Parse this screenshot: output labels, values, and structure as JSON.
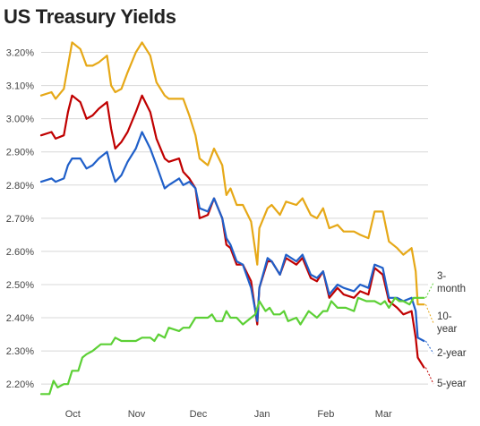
{
  "chart_data": {
    "type": "line",
    "title": "US Treasury Yields",
    "xlabel": "",
    "ylabel": "",
    "ylim": [
      2.16,
      3.25
    ],
    "y_ticks": [
      "3.20%",
      "3.10%",
      "3.00%",
      "2.90%",
      "2.80%",
      "2.70%",
      "2.60%",
      "2.50%",
      "2.40%",
      "2.30%",
      "2.20%"
    ],
    "y_tick_values": [
      3.2,
      3.1,
      3.0,
      2.9,
      2.8,
      2.7,
      2.6,
      2.5,
      2.4,
      2.3,
      2.2
    ],
    "x_ticks": [
      "Oct",
      "Nov",
      "Dec",
      "Jan",
      "Feb",
      "Mar"
    ],
    "x_tick_dates": [
      "2018-10-01",
      "2018-11-01",
      "2018-12-01",
      "2019-01-01",
      "2019-02-01",
      "2019-03-01"
    ],
    "x_range": [
      "2018-09-20",
      "2019-03-27"
    ],
    "grid": "horizontal",
    "series": [
      {
        "name": "10-year",
        "color": "#e6a817",
        "label_offset": 0,
        "points": [
          [
            "2018-09-20",
            3.07
          ],
          [
            "2018-09-25",
            3.08
          ],
          [
            "2018-09-27",
            3.06
          ],
          [
            "2018-10-01",
            3.09
          ],
          [
            "2018-10-03",
            3.16
          ],
          [
            "2018-10-05",
            3.23
          ],
          [
            "2018-10-09",
            3.21
          ],
          [
            "2018-10-12",
            3.16
          ],
          [
            "2018-10-15",
            3.16
          ],
          [
            "2018-10-18",
            3.17
          ],
          [
            "2018-10-22",
            3.19
          ],
          [
            "2018-10-24",
            3.1
          ],
          [
            "2018-10-26",
            3.08
          ],
          [
            "2018-10-29",
            3.09
          ],
          [
            "2018-11-01",
            3.14
          ],
          [
            "2018-11-05",
            3.2
          ],
          [
            "2018-11-08",
            3.23
          ],
          [
            "2018-11-12",
            3.19
          ],
          [
            "2018-11-15",
            3.11
          ],
          [
            "2018-11-19",
            3.07
          ],
          [
            "2018-11-21",
            3.06
          ],
          [
            "2018-11-26",
            3.06
          ],
          [
            "2018-11-28",
            3.06
          ],
          [
            "2018-12-01",
            3.01
          ],
          [
            "2018-12-04",
            2.95
          ],
          [
            "2018-12-06",
            2.88
          ],
          [
            "2018-12-10",
            2.86
          ],
          [
            "2018-12-13",
            2.91
          ],
          [
            "2018-12-17",
            2.86
          ],
          [
            "2018-12-19",
            2.77
          ],
          [
            "2018-12-21",
            2.79
          ],
          [
            "2018-12-24",
            2.74
          ],
          [
            "2018-12-27",
            2.74
          ],
          [
            "2018-12-31",
            2.69
          ],
          [
            "2019-01-03",
            2.56
          ],
          [
            "2019-01-04",
            2.67
          ],
          [
            "2019-01-08",
            2.73
          ],
          [
            "2019-01-10",
            2.74
          ],
          [
            "2019-01-14",
            2.71
          ],
          [
            "2019-01-17",
            2.75
          ],
          [
            "2019-01-22",
            2.74
          ],
          [
            "2019-01-25",
            2.76
          ],
          [
            "2019-01-29",
            2.71
          ],
          [
            "2019-02-01",
            2.7
          ],
          [
            "2019-02-04",
            2.73
          ],
          [
            "2019-02-07",
            2.67
          ],
          [
            "2019-02-11",
            2.68
          ],
          [
            "2019-02-14",
            2.66
          ],
          [
            "2019-02-19",
            2.66
          ],
          [
            "2019-02-22",
            2.65
          ],
          [
            "2019-02-26",
            2.64
          ],
          [
            "2019-03-01",
            2.72
          ],
          [
            "2019-03-05",
            2.72
          ],
          [
            "2019-03-08",
            2.63
          ],
          [
            "2019-03-12",
            2.61
          ],
          [
            "2019-03-15",
            2.59
          ],
          [
            "2019-03-19",
            2.61
          ],
          [
            "2019-03-21",
            2.54
          ],
          [
            "2019-03-22",
            2.44
          ],
          [
            "2019-03-25",
            2.44
          ]
        ]
      },
      {
        "name": "5-year",
        "color": "#c00000",
        "label_offset": 0,
        "points": [
          [
            "2018-09-20",
            2.95
          ],
          [
            "2018-09-25",
            2.96
          ],
          [
            "2018-09-27",
            2.94
          ],
          [
            "2018-10-01",
            2.95
          ],
          [
            "2018-10-03",
            3.02
          ],
          [
            "2018-10-05",
            3.07
          ],
          [
            "2018-10-09",
            3.05
          ],
          [
            "2018-10-12",
            3.0
          ],
          [
            "2018-10-15",
            3.01
          ],
          [
            "2018-10-18",
            3.03
          ],
          [
            "2018-10-22",
            3.05
          ],
          [
            "2018-10-24",
            2.97
          ],
          [
            "2018-10-26",
            2.91
          ],
          [
            "2018-10-29",
            2.93
          ],
          [
            "2018-11-01",
            2.96
          ],
          [
            "2018-11-05",
            3.02
          ],
          [
            "2018-11-08",
            3.07
          ],
          [
            "2018-11-12",
            3.02
          ],
          [
            "2018-11-15",
            2.94
          ],
          [
            "2018-11-19",
            2.88
          ],
          [
            "2018-11-21",
            2.87
          ],
          [
            "2018-11-26",
            2.88
          ],
          [
            "2018-11-28",
            2.84
          ],
          [
            "2018-12-01",
            2.82
          ],
          [
            "2018-12-04",
            2.79
          ],
          [
            "2018-12-06",
            2.7
          ],
          [
            "2018-12-10",
            2.71
          ],
          [
            "2018-12-13",
            2.76
          ],
          [
            "2018-12-17",
            2.7
          ],
          [
            "2018-12-19",
            2.62
          ],
          [
            "2018-12-21",
            2.61
          ],
          [
            "2018-12-24",
            2.56
          ],
          [
            "2018-12-27",
            2.56
          ],
          [
            "2018-12-31",
            2.51
          ],
          [
            "2019-01-03",
            2.38
          ],
          [
            "2019-01-04",
            2.49
          ],
          [
            "2019-01-08",
            2.57
          ],
          [
            "2019-01-10",
            2.57
          ],
          [
            "2019-01-14",
            2.53
          ],
          [
            "2019-01-17",
            2.58
          ],
          [
            "2019-01-22",
            2.56
          ],
          [
            "2019-01-25",
            2.58
          ],
          [
            "2019-01-29",
            2.52
          ],
          [
            "2019-02-01",
            2.51
          ],
          [
            "2019-02-04",
            2.54
          ],
          [
            "2019-02-07",
            2.46
          ],
          [
            "2019-02-11",
            2.49
          ],
          [
            "2019-02-14",
            2.47
          ],
          [
            "2019-02-19",
            2.46
          ],
          [
            "2019-02-22",
            2.48
          ],
          [
            "2019-02-26",
            2.47
          ],
          [
            "2019-03-01",
            2.55
          ],
          [
            "2019-03-05",
            2.53
          ],
          [
            "2019-03-08",
            2.45
          ],
          [
            "2019-03-12",
            2.43
          ],
          [
            "2019-03-15",
            2.41
          ],
          [
            "2019-03-19",
            2.42
          ],
          [
            "2019-03-21",
            2.34
          ],
          [
            "2019-03-22",
            2.28
          ],
          [
            "2019-03-25",
            2.25
          ]
        ]
      },
      {
        "name": "2-year",
        "color": "#1f5fc9",
        "label_offset": 0,
        "points": [
          [
            "2018-09-20",
            2.81
          ],
          [
            "2018-09-25",
            2.82
          ],
          [
            "2018-09-27",
            2.81
          ],
          [
            "2018-10-01",
            2.82
          ],
          [
            "2018-10-03",
            2.86
          ],
          [
            "2018-10-05",
            2.88
          ],
          [
            "2018-10-09",
            2.88
          ],
          [
            "2018-10-12",
            2.85
          ],
          [
            "2018-10-15",
            2.86
          ],
          [
            "2018-10-18",
            2.88
          ],
          [
            "2018-10-22",
            2.9
          ],
          [
            "2018-10-24",
            2.85
          ],
          [
            "2018-10-26",
            2.81
          ],
          [
            "2018-10-29",
            2.83
          ],
          [
            "2018-11-01",
            2.87
          ],
          [
            "2018-11-05",
            2.91
          ],
          [
            "2018-11-08",
            2.96
          ],
          [
            "2018-11-12",
            2.91
          ],
          [
            "2018-11-15",
            2.86
          ],
          [
            "2018-11-19",
            2.79
          ],
          [
            "2018-11-21",
            2.8
          ],
          [
            "2018-11-26",
            2.82
          ],
          [
            "2018-11-28",
            2.8
          ],
          [
            "2018-12-01",
            2.81
          ],
          [
            "2018-12-04",
            2.79
          ],
          [
            "2018-12-06",
            2.73
          ],
          [
            "2018-12-10",
            2.72
          ],
          [
            "2018-12-13",
            2.76
          ],
          [
            "2018-12-17",
            2.7
          ],
          [
            "2018-12-19",
            2.64
          ],
          [
            "2018-12-21",
            2.62
          ],
          [
            "2018-12-24",
            2.57
          ],
          [
            "2018-12-27",
            2.56
          ],
          [
            "2018-12-31",
            2.49
          ],
          [
            "2019-01-03",
            2.39
          ],
          [
            "2019-01-04",
            2.49
          ],
          [
            "2019-01-08",
            2.58
          ],
          [
            "2019-01-10",
            2.57
          ],
          [
            "2019-01-14",
            2.53
          ],
          [
            "2019-01-17",
            2.59
          ],
          [
            "2019-01-22",
            2.57
          ],
          [
            "2019-01-25",
            2.59
          ],
          [
            "2019-01-29",
            2.53
          ],
          [
            "2019-02-01",
            2.52
          ],
          [
            "2019-02-04",
            2.54
          ],
          [
            "2019-02-07",
            2.47
          ],
          [
            "2019-02-11",
            2.5
          ],
          [
            "2019-02-14",
            2.49
          ],
          [
            "2019-02-19",
            2.48
          ],
          [
            "2019-02-22",
            2.5
          ],
          [
            "2019-02-26",
            2.49
          ],
          [
            "2019-03-01",
            2.56
          ],
          [
            "2019-03-05",
            2.55
          ],
          [
            "2019-03-08",
            2.46
          ],
          [
            "2019-03-12",
            2.46
          ],
          [
            "2019-03-15",
            2.45
          ],
          [
            "2019-03-19",
            2.46
          ],
          [
            "2019-03-21",
            2.42
          ],
          [
            "2019-03-22",
            2.34
          ],
          [
            "2019-03-25",
            2.33
          ]
        ]
      },
      {
        "name": "3-month",
        "color": "#5cd035",
        "label_offset": 0,
        "points": [
          [
            "2018-09-20",
            2.17
          ],
          [
            "2018-09-24",
            2.17
          ],
          [
            "2018-09-26",
            2.21
          ],
          [
            "2018-09-28",
            2.19
          ],
          [
            "2018-10-01",
            2.2
          ],
          [
            "2018-10-03",
            2.2
          ],
          [
            "2018-10-05",
            2.24
          ],
          [
            "2018-10-08",
            2.24
          ],
          [
            "2018-10-10",
            2.28
          ],
          [
            "2018-10-12",
            2.29
          ],
          [
            "2018-10-15",
            2.3
          ],
          [
            "2018-10-19",
            2.32
          ],
          [
            "2018-10-22",
            2.32
          ],
          [
            "2018-10-24",
            2.32
          ],
          [
            "2018-10-26",
            2.34
          ],
          [
            "2018-10-29",
            2.33
          ],
          [
            "2018-11-01",
            2.33
          ],
          [
            "2018-11-05",
            2.33
          ],
          [
            "2018-11-08",
            2.34
          ],
          [
            "2018-11-12",
            2.34
          ],
          [
            "2018-11-14",
            2.33
          ],
          [
            "2018-11-16",
            2.35
          ],
          [
            "2018-11-19",
            2.34
          ],
          [
            "2018-11-21",
            2.37
          ],
          [
            "2018-11-26",
            2.36
          ],
          [
            "2018-11-28",
            2.37
          ],
          [
            "2018-12-01",
            2.37
          ],
          [
            "2018-12-04",
            2.4
          ],
          [
            "2018-12-07",
            2.4
          ],
          [
            "2018-12-10",
            2.4
          ],
          [
            "2018-12-12",
            2.41
          ],
          [
            "2018-12-14",
            2.39
          ],
          [
            "2018-12-17",
            2.39
          ],
          [
            "2018-12-19",
            2.42
          ],
          [
            "2018-12-21",
            2.4
          ],
          [
            "2018-12-24",
            2.4
          ],
          [
            "2018-12-27",
            2.38
          ],
          [
            "2018-12-31",
            2.4
          ],
          [
            "2019-01-02",
            2.41
          ],
          [
            "2019-01-04",
            2.45
          ],
          [
            "2019-01-07",
            2.42
          ],
          [
            "2019-01-09",
            2.43
          ],
          [
            "2019-01-11",
            2.41
          ],
          [
            "2019-01-14",
            2.41
          ],
          [
            "2019-01-16",
            2.42
          ],
          [
            "2019-01-18",
            2.39
          ],
          [
            "2019-01-22",
            2.4
          ],
          [
            "2019-01-24",
            2.38
          ],
          [
            "2019-01-28",
            2.42
          ],
          [
            "2019-01-30",
            2.41
          ],
          [
            "2019-02-01",
            2.4
          ],
          [
            "2019-02-04",
            2.42
          ],
          [
            "2019-02-06",
            2.42
          ],
          [
            "2019-02-08",
            2.45
          ],
          [
            "2019-02-11",
            2.43
          ],
          [
            "2019-02-13",
            2.43
          ],
          [
            "2019-02-15",
            2.43
          ],
          [
            "2019-02-19",
            2.42
          ],
          [
            "2019-02-21",
            2.46
          ],
          [
            "2019-02-25",
            2.45
          ],
          [
            "2019-02-27",
            2.45
          ],
          [
            "2019-03-01",
            2.45
          ],
          [
            "2019-03-04",
            2.44
          ],
          [
            "2019-03-06",
            2.45
          ],
          [
            "2019-03-08",
            2.43
          ],
          [
            "2019-03-11",
            2.46
          ],
          [
            "2019-03-13",
            2.45
          ],
          [
            "2019-03-15",
            2.45
          ],
          [
            "2019-03-18",
            2.44
          ],
          [
            "2019-03-20",
            2.46
          ],
          [
            "2019-03-22",
            2.46
          ],
          [
            "2019-03-25",
            2.46
          ]
        ]
      }
    ],
    "end_labels": [
      {
        "series": "3-month",
        "lines": [
          "3-",
          "month"
        ]
      },
      {
        "series": "10-year",
        "lines": [
          "10-",
          "year"
        ]
      },
      {
        "series": "2-year",
        "lines": [
          "2-year"
        ]
      },
      {
        "series": "5-year",
        "lines": [
          "5-year"
        ]
      }
    ]
  }
}
